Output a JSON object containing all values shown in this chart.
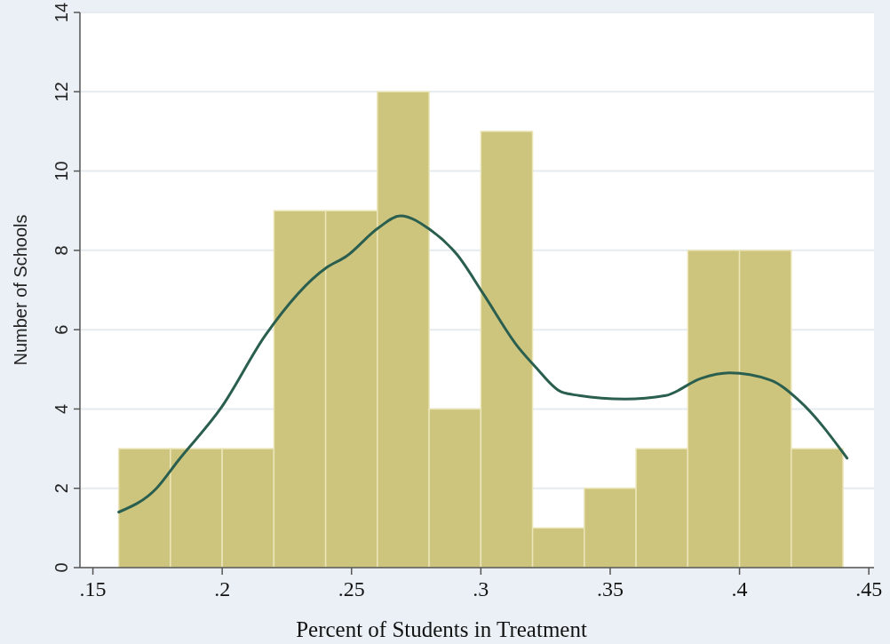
{
  "chart_data": {
    "type": "histogram",
    "xlabel": "Percent of Students in Treatment",
    "ylabel": "Number of Schools",
    "bins": [
      0.16,
      0.18,
      0.2,
      0.22,
      0.24,
      0.26,
      0.28,
      0.3,
      0.32,
      0.34,
      0.36,
      0.38,
      0.4,
      0.42,
      0.44
    ],
    "values": [
      3,
      3,
      3,
      9,
      9,
      12,
      4,
      11,
      1,
      2,
      3,
      8,
      8,
      3
    ],
    "color": "#cdc47e",
    "series": [
      {
        "type": "line",
        "color": "#2a5f50",
        "x": [
          0.16,
          0.1746,
          0.183,
          0.1998,
          0.2167,
          0.2402,
          0.248,
          0.2604,
          0.2689,
          0.2806,
          0.2907,
          0.3008,
          0.3143,
          0.321,
          0.3311,
          0.3379,
          0.3557,
          0.3715,
          0.385,
          0.3961,
          0.4119,
          0.4231,
          0.4416
        ],
        "values": [
          1.4,
          2.0,
          2.7,
          4.05,
          5.86,
          7.56,
          7.85,
          8.57,
          8.87,
          8.51,
          7.9,
          6.92,
          5.57,
          5.07,
          4.43,
          4.34,
          4.25,
          4.34,
          4.77,
          4.91,
          4.73,
          4.21,
          2.76
        ]
      }
    ],
    "xlim": [
      0.145,
      0.452
    ],
    "xticks": [
      {
        "value": 0.15,
        "label": ".15"
      },
      {
        "value": 0.2,
        "label": ".2"
      },
      {
        "value": 0.25,
        "label": ".25"
      },
      {
        "value": 0.3,
        "label": ".3"
      },
      {
        "value": 0.35,
        "label": ".35"
      },
      {
        "value": 0.4,
        "label": ".4"
      },
      {
        "value": 0.45,
        "label": ".45"
      }
    ],
    "ylim": [
      0,
      14
    ],
    "yticks": [
      0,
      2,
      4,
      6,
      8,
      10,
      12,
      14
    ],
    "grid": "y"
  }
}
